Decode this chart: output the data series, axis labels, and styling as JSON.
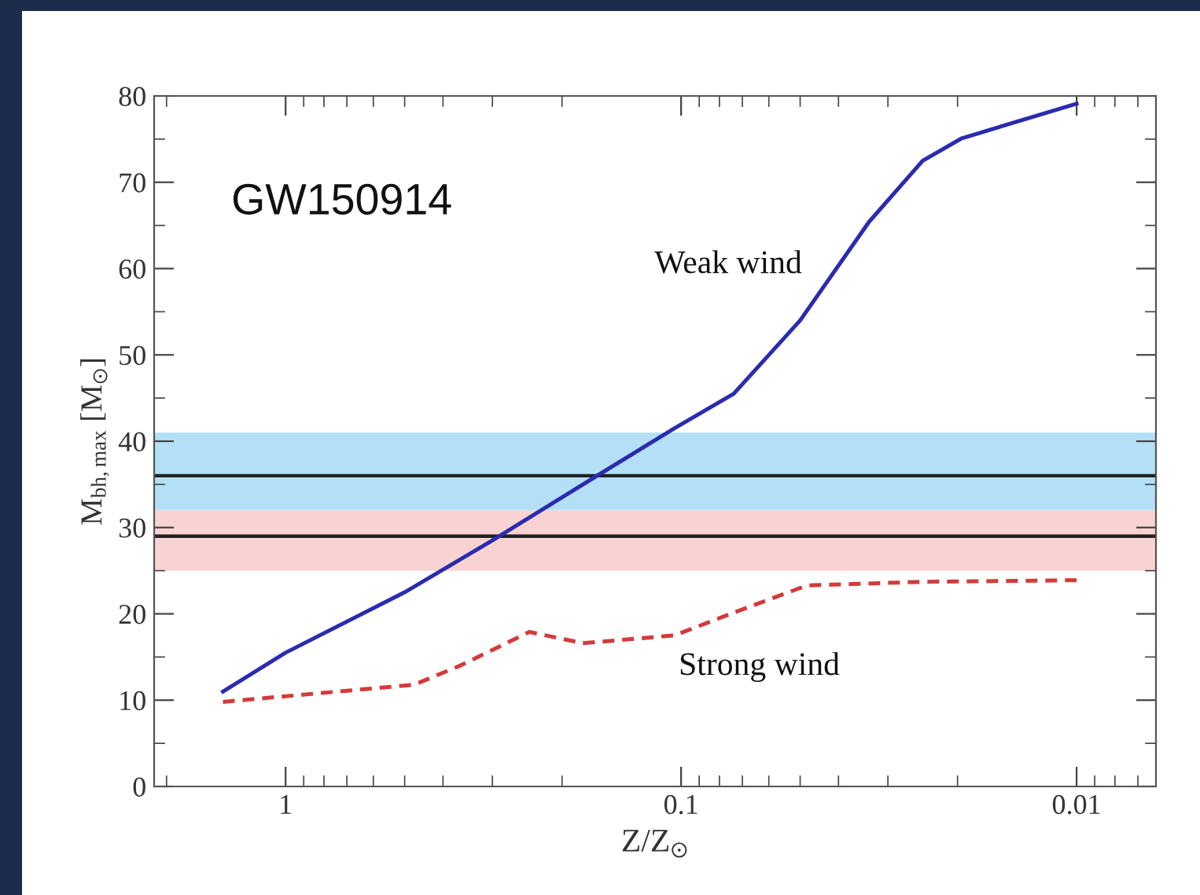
{
  "chart_data": {
    "type": "line",
    "xlabel": "Z/Z$_{⊙}$",
    "ylabel": "M$_{bh,max}$ [M$_{⊙}$]",
    "log": "x",
    "xlim": [
      2.15,
      0.0063
    ],
    "xticks": [
      1,
      0.1,
      0.01
    ],
    "ylim": [
      0,
      80
    ],
    "yticks": [
      0,
      10,
      20,
      30,
      40,
      50,
      60,
      70,
      80
    ],
    "grid": false,
    "series": [
      {
        "color": "#2b2bb0",
        "line_style": "solid",
        "x": [
          1.44,
          1,
          0.5,
          0.3,
          0.2,
          0.104,
          0.0736,
          0.05,
          0.0335,
          0.0245,
          0.0195,
          0.01
        ],
        "values": [
          11,
          15.5,
          22.5,
          28.5,
          33.5,
          41.5,
          45.5,
          54,
          65.4,
          72.5,
          75.1,
          79.1
        ]
      },
      {
        "color": "#d43a3a",
        "line_style": "dashed",
        "x": [
          1.44,
          0.472,
          0.362,
          0.242,
          0.177,
          0.104,
          0.073,
          0.048,
          0.025,
          0.01
        ],
        "values": [
          9.8,
          11.8,
          14,
          17.9,
          16.6,
          17.5,
          20.2,
          23.3,
          23.7,
          23.9
        ]
      }
    ],
    "bands": [
      {
        "axis": "y",
        "from": 32,
        "to": 41,
        "color": "#b3e0f7"
      },
      {
        "axis": "y",
        "from": 25,
        "to": 32,
        "color": "#f9d3d3"
      }
    ],
    "ref_lines": [
      {
        "axis": "y",
        "value": 36,
        "color": "#222222"
      },
      {
        "axis": "y",
        "value": 29,
        "color": "#222222"
      }
    ],
    "annotations": [
      "GW150914",
      "Weak wind",
      "Strong wind"
    ]
  }
}
